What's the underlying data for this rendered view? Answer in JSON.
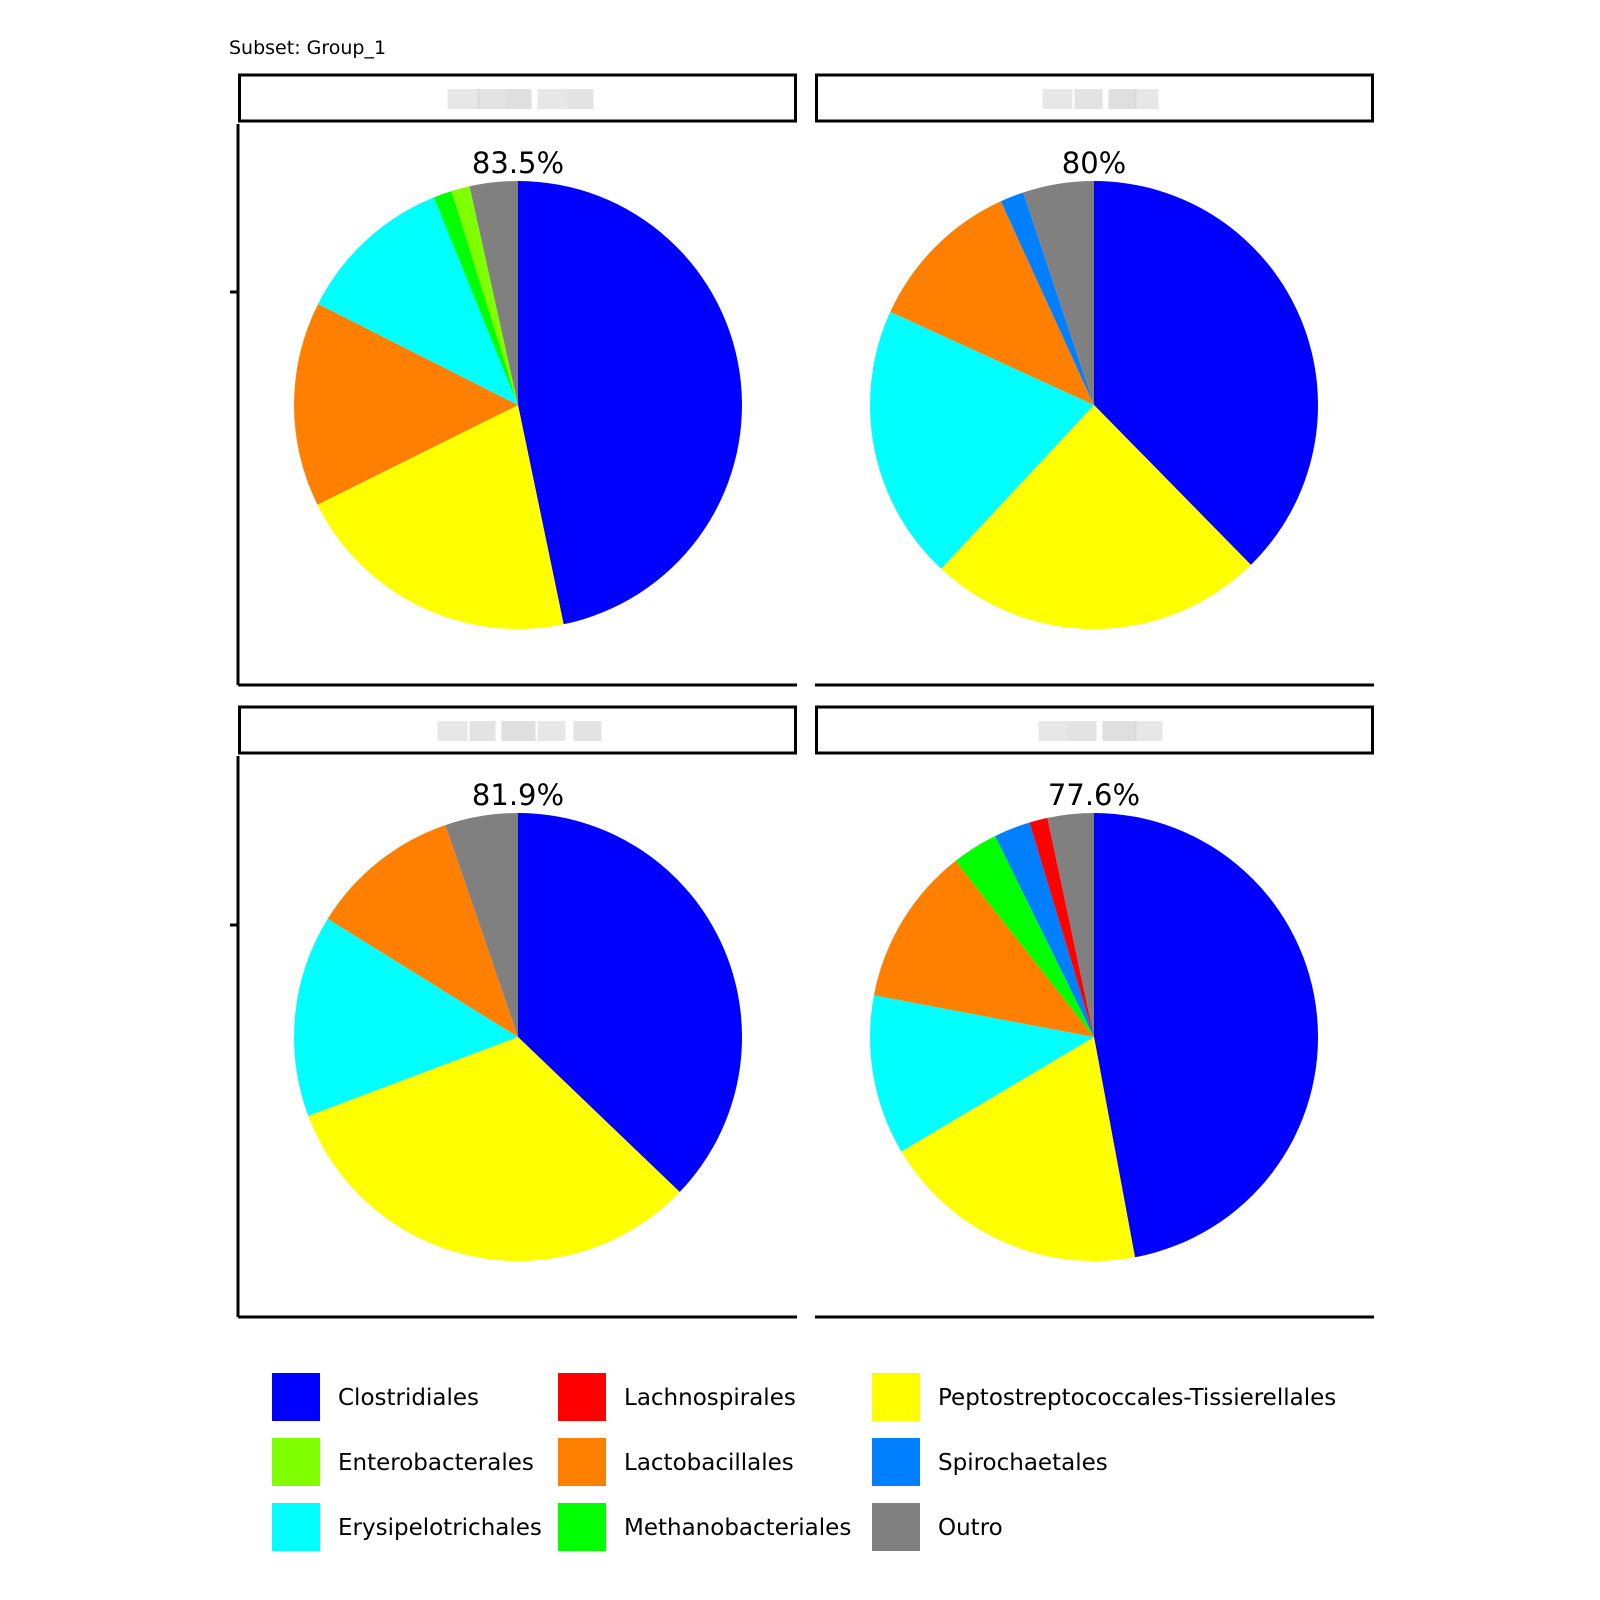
{
  "subset_title": "Subset: Group_1",
  "chart_data": [
    {
      "type": "pie",
      "title": "",
      "label": "83.5%",
      "slices": [
        {
          "name": "Clostridiales",
          "value": 45.8
        },
        {
          "name": "Peptostreptococcales-Tissierellales",
          "value": 20.5
        },
        {
          "name": "Lactobacillales",
          "value": 14.5
        },
        {
          "name": "Erysipelotrichales",
          "value": 11.2
        },
        {
          "name": "Methanobacteriales",
          "value": 1.3
        },
        {
          "name": "Enterobacterales",
          "value": 1.3
        },
        {
          "name": "Outro",
          "value": 3.4
        }
      ]
    },
    {
      "type": "pie",
      "title": "",
      "label": "80%",
      "slices": [
        {
          "name": "Clostridiales",
          "value": 37.5
        },
        {
          "name": "Peptostreptococcales-Tissierellales",
          "value": 24.2
        },
        {
          "name": "Erysipelotrichales",
          "value": 19.8
        },
        {
          "name": "Lactobacillales",
          "value": 11.3
        },
        {
          "name": "Spirochaetales",
          "value": 1.7
        },
        {
          "name": "Outro",
          "value": 5.1
        }
      ]
    },
    {
      "type": "pie",
      "title": "",
      "label": "81.9%",
      "slices": [
        {
          "name": "Clostridiales",
          "value": 37.5
        },
        {
          "name": "Peptostreptococcales-Tissierellales",
          "value": 32.4
        },
        {
          "name": "Erysipelotrichales",
          "value": 14.7
        },
        {
          "name": "Lactobacillales",
          "value": 11.0
        },
        {
          "name": "Outro",
          "value": 5.3
        }
      ]
    },
    {
      "type": "pie",
      "title": "",
      "label": "77.6%",
      "slices": [
        {
          "name": "Clostridiales",
          "value": 46.6
        },
        {
          "name": "Peptostreptococcales-Tissierellales",
          "value": 19.2
        },
        {
          "name": "Erysipelotrichales",
          "value": 11.4
        },
        {
          "name": "Lactobacillales",
          "value": 11.3
        },
        {
          "name": "Methanobacteriales",
          "value": 3.3
        },
        {
          "name": "Spirochaetales",
          "value": 2.6
        },
        {
          "name": "Lachnospirales",
          "value": 1.3
        },
        {
          "name": "Outro",
          "value": 3.3
        }
      ]
    }
  ],
  "legend": {
    "items": [
      {
        "name": "Clostridiales",
        "color": "#0000ff"
      },
      {
        "name": "Enterobacterales",
        "color": "#80ff00"
      },
      {
        "name": "Erysipelotrichales",
        "color": "#00ffff"
      },
      {
        "name": "Lachnospirales",
        "color": "#ff0000"
      },
      {
        "name": "Lactobacillales",
        "color": "#ff8000"
      },
      {
        "name": "Methanobacteriales",
        "color": "#00ff00"
      },
      {
        "name": "Peptostreptococcales-Tissierellales",
        "color": "#ffff00"
      },
      {
        "name": "Spirochaetales",
        "color": "#0080ff"
      },
      {
        "name": "Outro",
        "color": "#808080"
      }
    ]
  }
}
